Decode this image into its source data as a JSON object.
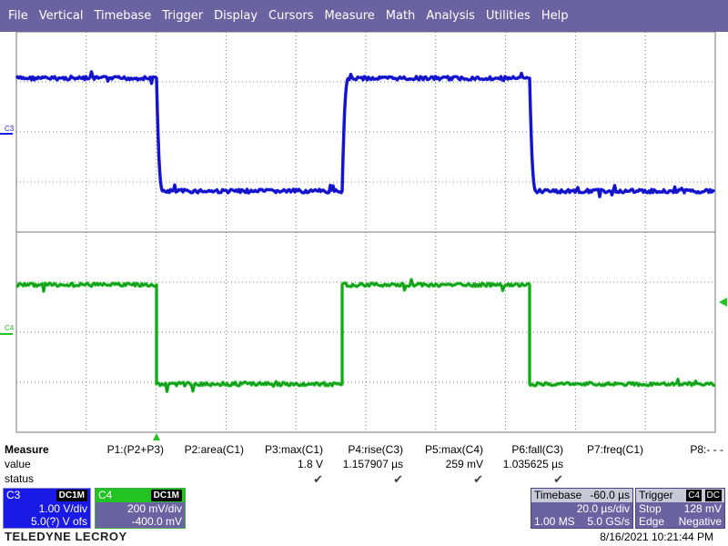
{
  "menu": [
    "File",
    "Vertical",
    "Timebase",
    "Trigger",
    "Display",
    "Cursors",
    "Measure",
    "Math",
    "Analysis",
    "Utilities",
    "Help"
  ],
  "channel_labels": {
    "c3": "C3",
    "c4": "C4"
  },
  "colors": {
    "c3": "#1a1ae6",
    "c4": "#22c322",
    "menubar": "#6a63a2",
    "grid": "#7a7a7a"
  },
  "measure": {
    "title": "Measure",
    "row_labels": [
      "value",
      "status"
    ],
    "params": [
      {
        "name": "P1:(P2+P3)",
        "value": "",
        "status": ""
      },
      {
        "name": "P2:area(C1)",
        "value": "",
        "status": ""
      },
      {
        "name": "P3:max(C1)",
        "value": "1.8 V",
        "status": "✔"
      },
      {
        "name": "P4:rise(C3)",
        "value": "1.157907 µs",
        "status": "✔"
      },
      {
        "name": "P5:max(C4)",
        "value": "259 mV",
        "status": "✔"
      },
      {
        "name": "P6:fall(C3)",
        "value": "1.035625 µs",
        "status": "✔"
      },
      {
        "name": "P7:freq(C1)",
        "value": "",
        "status": ""
      },
      {
        "name": "P8:- - -",
        "value": "",
        "status": ""
      }
    ]
  },
  "channels": {
    "c3": {
      "name": "C3",
      "badge": "DC1M",
      "vdiv": "1.00 V/div",
      "offset": "5.0(?) V ofs"
    },
    "c4": {
      "name": "C4",
      "badge": "DC1M",
      "vdiv": "200 mV/div",
      "offset": "-400.0 mV"
    }
  },
  "timebase": {
    "label": "Timebase",
    "delay": "-60.0 µs",
    "tdiv": "20.0 µs/div",
    "samples": "1.00 MS",
    "rate": "5.0 GS/s"
  },
  "trigger": {
    "label": "Trigger",
    "source": "C4",
    "coupling": "DC",
    "mode": "Stop",
    "level": "128 mV",
    "type": "Edge",
    "slope": "Negative"
  },
  "footer": {
    "brand": "TELEDYNE LECROY",
    "datetime": "8/16/2021 10:21:44 PM"
  }
}
